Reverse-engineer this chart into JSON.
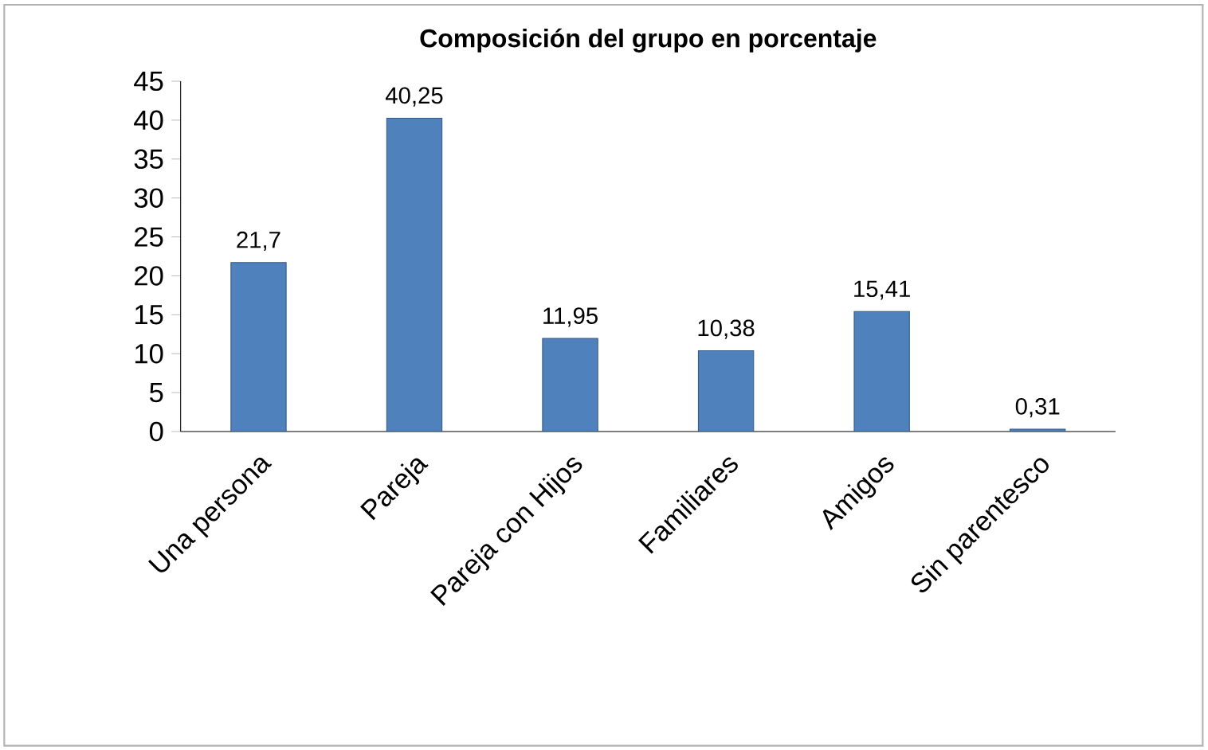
{
  "chart_data": {
    "type": "bar",
    "title": "Composición del grupo en porcentaje",
    "categories": [
      "Una persona",
      "Pareja",
      "Pareja con Hijos",
      "Familiares",
      "Amigos",
      "Sin parentesco"
    ],
    "values": [
      21.7,
      40.25,
      11.95,
      10.38,
      15.41,
      0.31
    ],
    "value_labels": [
      "21,7",
      "40,25",
      "11,95",
      "10,38",
      "15,41",
      "0,31"
    ],
    "color": "#4f81bd",
    "ylim": [
      0,
      45
    ],
    "yticks": [
      0,
      5,
      10,
      15,
      20,
      25,
      30,
      35,
      40,
      45
    ],
    "grid": false
  }
}
